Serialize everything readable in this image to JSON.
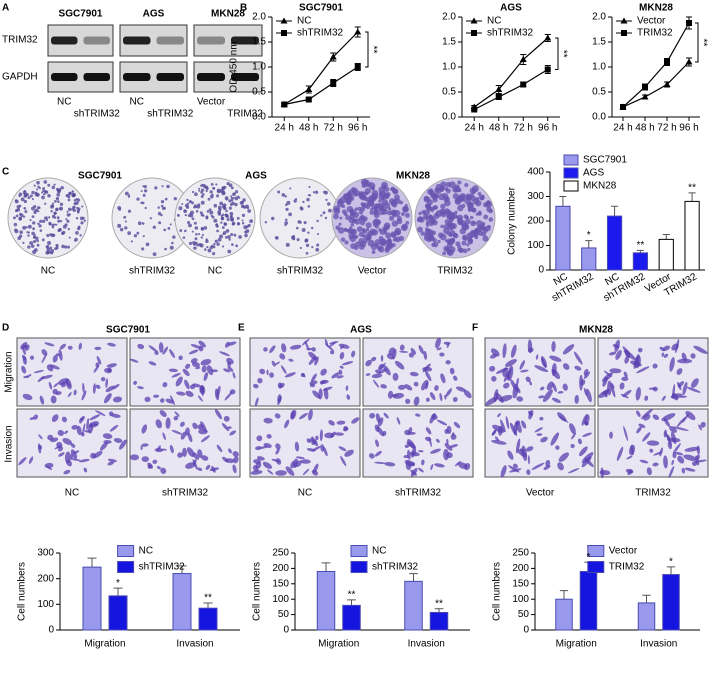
{
  "figure": {
    "panel_labels": [
      "A",
      "B",
      "C",
      "D",
      "E",
      "F"
    ],
    "blot": {
      "headers": [
        "SGC7901",
        "AGS",
        "MKN28"
      ],
      "rows": [
        "TRIM32",
        "GAPDH"
      ],
      "lanes": [
        "NC",
        "shTRIM32",
        "NC",
        "shTRIM32",
        "Vector",
        "TRIM32"
      ]
    },
    "colony": {
      "headers": [
        "SGC7901",
        "AGS",
        "MKN28"
      ],
      "captions": [
        "NC",
        "shTRIM32",
        "NC",
        "shTRIM32",
        "Vector",
        "TRIM32"
      ]
    },
    "transwell": [
      {
        "title": "SGC7901",
        "captions": [
          "NC",
          "shTRIM32"
        ]
      },
      {
        "title": "AGS",
        "captions": [
          "NC",
          "shTRIM32"
        ]
      },
      {
        "title": "MKN28",
        "captions": [
          "Vector",
          "TRIM32"
        ]
      }
    ],
    "transwell_rows": [
      "Migration",
      "Invasion"
    ]
  },
  "chart_data": [
    {
      "type": "line",
      "title": "SGC7901",
      "ylabel": "OD 450 nm",
      "categories": [
        "24 h",
        "48 h",
        "72 h",
        "96 h"
      ],
      "series": [
        {
          "name": "NC",
          "color": "#000000",
          "marker": "triangle",
          "values": [
            0.25,
            0.55,
            1.2,
            1.7
          ],
          "errors": [
            0.02,
            0.07,
            0.08,
            0.1
          ]
        },
        {
          "name": "shTRIM32",
          "color": "#000000",
          "marker": "square",
          "values": [
            0.25,
            0.35,
            0.68,
            1.0
          ],
          "errors": [
            0.02,
            0.03,
            0.07,
            0.07
          ]
        }
      ],
      "ylim": [
        0,
        2
      ],
      "yticks": [
        {
          "value": 0,
          "label": "0.0"
        },
        0.5,
        {
          "value": 1,
          "label": "1.0"
        },
        1.5,
        {
          "value": 2,
          "label": "2.0"
        }
      ],
      "annotations": [
        "**"
      ]
    },
    {
      "type": "line",
      "title": "AGS",
      "categories": [
        "24 h",
        "48 h",
        "72 h",
        "96 h"
      ],
      "series": [
        {
          "name": "NC",
          "color": "#000000",
          "marker": "triangle",
          "values": [
            0.2,
            0.55,
            1.15,
            1.58
          ],
          "errors": [
            0.03,
            0.08,
            0.1,
            0.07
          ]
        },
        {
          "name": "shTRIM32",
          "color": "#000000",
          "marker": "square",
          "values": [
            0.15,
            0.4,
            0.65,
            0.95
          ],
          "errors": [
            0.02,
            0.04,
            0.05,
            0.08
          ]
        }
      ],
      "ylim": [
        0,
        2
      ],
      "yticks": [
        {
          "value": 0,
          "label": "0.0"
        },
        0.5,
        {
          "value": 1,
          "label": "1.0"
        },
        1.5,
        {
          "value": 2,
          "label": "2.0"
        }
      ],
      "annotations": [
        "**"
      ]
    },
    {
      "type": "line",
      "title": "MKN28",
      "categories": [
        "24 h",
        "48 h",
        "72 h",
        "96 h"
      ],
      "series": [
        {
          "name": "Vector",
          "color": "#000000",
          "marker": "triangle",
          "values": [
            0.2,
            0.4,
            0.65,
            1.1
          ],
          "errors": [
            0.02,
            0.04,
            0.05,
            0.08
          ]
        },
        {
          "name": "TRIM32",
          "color": "#000000",
          "marker": "square",
          "values": [
            0.2,
            0.6,
            1.1,
            1.88
          ],
          "errors": [
            0.02,
            0.06,
            0.07,
            0.12
          ]
        }
      ],
      "ylim": [
        0,
        2
      ],
      "yticks": [
        {
          "value": 0,
          "label": "0.0"
        },
        0.5,
        {
          "value": 1,
          "label": "1.0"
        },
        1.5,
        {
          "value": 2,
          "label": "2.0"
        }
      ],
      "annotations": [
        "**"
      ]
    },
    {
      "type": "bar",
      "grouped": false,
      "ylabel": "Colony number",
      "categories": [
        "NC",
        "shTRIM32",
        "NC",
        "shTRIM32",
        "Vector",
        "TRIM32"
      ],
      "series": [
        {
          "name": "SGC7901",
          "color": "#9999ee",
          "values": [
            260,
            90,
            null,
            null,
            null,
            null
          ],
          "errors": [
            40,
            30,
            null,
            null,
            null,
            null
          ],
          "significance": [
            null,
            "*",
            null,
            null,
            null,
            null
          ]
        },
        {
          "name": "AGS",
          "color": "#1a1aee",
          "values": [
            null,
            null,
            220,
            70,
            null,
            null
          ],
          "errors": [
            null,
            null,
            40,
            10,
            null,
            null
          ],
          "significance": [
            null,
            null,
            null,
            "**",
            null,
            null
          ]
        },
        {
          "name": "MKN28",
          "color": "#ffffff",
          "values": [
            null,
            null,
            null,
            null,
            125,
            280
          ],
          "errors": [
            null,
            null,
            null,
            null,
            20,
            35
          ],
          "significance": [
            null,
            null,
            null,
            null,
            null,
            "**"
          ]
        }
      ],
      "ylim": [
        0,
        400
      ],
      "yticks": [
        0,
        100,
        200,
        300,
        400
      ]
    },
    {
      "type": "bar",
      "grouped": true,
      "ylabel": "Cell numbers",
      "categories": [
        "Migration",
        "Invasion"
      ],
      "series": [
        {
          "name": "NC",
          "color": "#9999ee",
          "values": [
            245,
            220
          ],
          "errors": [
            35,
            30
          ],
          "significance": [
            null,
            null
          ]
        },
        {
          "name": "shTRIM32",
          "color": "#1515e0",
          "values": [
            133,
            85
          ],
          "errors": [
            30,
            20
          ],
          "significance": [
            "*",
            "**"
          ]
        }
      ],
      "ylim": [
        0,
        300
      ],
      "yticks": [
        0,
        100,
        200,
        300
      ]
    },
    {
      "type": "bar",
      "grouped": true,
      "ylabel": "Cell numbers",
      "categories": [
        "Migration",
        "Invasion"
      ],
      "series": [
        {
          "name": "NC",
          "color": "#9999ee",
          "values": [
            190,
            158
          ],
          "errors": [
            28,
            25
          ],
          "significance": [
            null,
            null
          ]
        },
        {
          "name": "shTRIM32",
          "color": "#1515e0",
          "values": [
            80,
            57
          ],
          "errors": [
            18,
            12
          ],
          "significance": [
            "**",
            "**"
          ]
        }
      ],
      "ylim": [
        0,
        250
      ],
      "yticks": [
        0,
        50,
        100,
        150,
        200,
        250
      ]
    },
    {
      "type": "bar",
      "grouped": true,
      "ylabel": "Cell numbers",
      "categories": [
        "Migration",
        "Invasion"
      ],
      "series": [
        {
          "name": "Vector",
          "color": "#9999ee",
          "values": [
            100,
            88
          ],
          "errors": [
            28,
            25
          ],
          "significance": [
            null,
            null
          ]
        },
        {
          "name": "TRIM32",
          "color": "#1515e0",
          "values": [
            190,
            180
          ],
          "errors": [
            30,
            25
          ],
          "significance": [
            "*",
            "*"
          ]
        }
      ],
      "ylim": [
        0,
        250
      ],
      "yticks": [
        0,
        50,
        100,
        150,
        200,
        250
      ]
    }
  ]
}
